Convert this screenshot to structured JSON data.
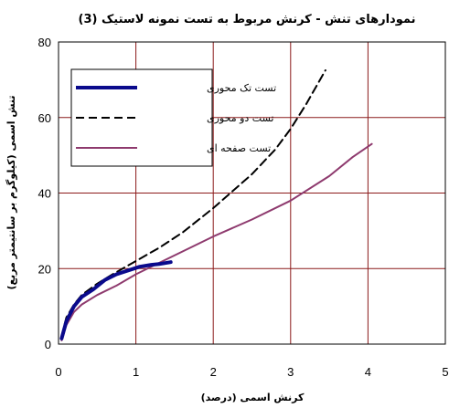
{
  "chart_data": {
    "type": "line",
    "title": "نمودارهای تنش - کرنش مربوط به تست نمونه لاستیک (3)",
    "xlabel": "کرنش اسمی (درصد)",
    "ylabel": "تنش اسمی (کیلوگرم بر سانتیمتر مربع)",
    "xlim": [
      0,
      5
    ],
    "ylim": [
      0,
      80
    ],
    "x_ticks": [
      "0",
      "1",
      "2",
      "3",
      "4",
      "5"
    ],
    "y_ticks": [
      "0",
      "20",
      "40",
      "60",
      "80"
    ],
    "grid": true,
    "legend_position": "top-left",
    "series": [
      {
        "name": "تست تک محوری",
        "color": "#0a0a8c",
        "style": "solid-thick",
        "x": [
          0.04,
          0.1,
          0.2,
          0.3,
          0.45,
          0.6,
          0.75,
          0.9,
          1.05,
          1.2,
          1.3,
          1.45
        ],
        "y": [
          1.5,
          6,
          10,
          12.5,
          14.5,
          17,
          18.5,
          19.5,
          20.5,
          21,
          21.2,
          21.7
        ]
      },
      {
        "name": "تست دو محوری",
        "color": "#000000",
        "style": "dashed",
        "x": [
          0.04,
          0.1,
          0.2,
          0.3,
          0.5,
          0.7,
          1.0,
          1.3,
          1.6,
          2.0,
          2.5,
          2.8,
          3.0,
          3.2,
          3.45
        ],
        "y": [
          2,
          7,
          10.5,
          13,
          16,
          18.5,
          22,
          25.5,
          29.5,
          36,
          45,
          51.5,
          57,
          63.5,
          72.5
        ]
      },
      {
        "name": "تست صفحه ای",
        "color": "#8e3a6e",
        "style": "solid",
        "x": [
          0.04,
          0.1,
          0.2,
          0.3,
          0.5,
          0.75,
          1.0,
          1.3,
          1.6,
          2.0,
          2.5,
          3.0,
          3.5,
          3.8,
          4.05
        ],
        "y": [
          1,
          5,
          8.5,
          10.5,
          13,
          15.5,
          18.5,
          21.5,
          24.5,
          28.5,
          33,
          38,
          44.5,
          49.5,
          53
        ]
      }
    ]
  }
}
